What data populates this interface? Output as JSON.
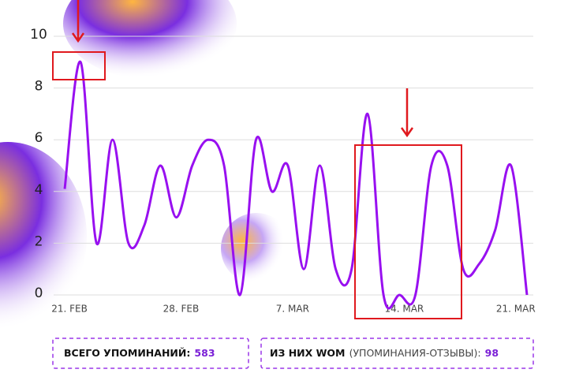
{
  "chart_data": {
    "type": "line",
    "categories": [
      "21. FEB",
      null,
      null,
      null,
      null,
      null,
      null,
      "28. FEB",
      null,
      null,
      null,
      null,
      null,
      null,
      "7. MAR",
      null,
      null,
      null,
      null,
      null,
      null,
      "14. MAR",
      null,
      null,
      null,
      null,
      null,
      null,
      "21. MAR",
      null
    ],
    "series": [
      {
        "name": "Упоминания",
        "color": "#9810f0",
        "values": [
          4.1,
          9,
          2,
          6,
          2,
          2.7,
          5,
          3,
          5,
          6,
          5,
          0,
          6,
          4,
          5,
          1,
          5,
          1,
          1,
          7,
          0,
          0,
          0,
          5,
          5,
          1,
          1.2,
          2.5,
          5,
          0
        ]
      }
    ],
    "ylim": [
      0,
      10
    ],
    "yticks": [
      0,
      2,
      4,
      6,
      8,
      10
    ],
    "grid": true
  },
  "stats": [
    {
      "label": "ВСЕГО УПОМИНАНИЙ:",
      "value": "583"
    },
    {
      "label": "ИЗ НИХ WOM",
      "note": "(УПОМИНАНИЯ-ОТЗЫВЫ):",
      "value": "98"
    }
  ]
}
